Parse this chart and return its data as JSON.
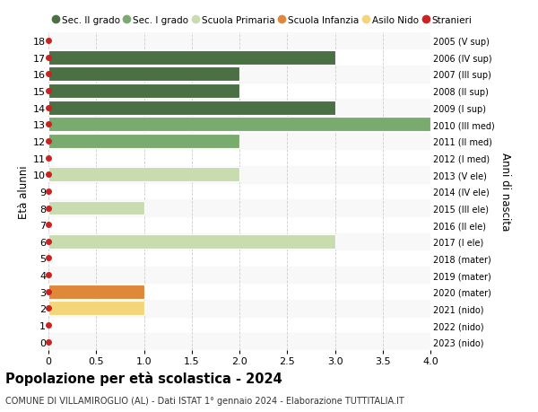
{
  "title": "Popolazione per età scolastica - 2024",
  "subtitle": "COMUNE DI VILLAMIROGLIO (AL) - Dati ISTAT 1° gennaio 2024 - Elaborazione TUTTITALIA.IT",
  "ylabel_left": "Età alunni",
  "ylabel_right": "Anni di nascita",
  "xlim": [
    0,
    4
  ],
  "xticks": [
    0,
    0.5,
    1.0,
    1.5,
    2.0,
    2.5,
    3.0,
    3.5,
    4.0
  ],
  "xtick_labels": [
    "0",
    "0.5",
    "1.0",
    "1.5",
    "2.0",
    "2.5",
    "3.0",
    "3.5",
    "4.0"
  ],
  "ages": [
    0,
    1,
    2,
    3,
    4,
    5,
    6,
    7,
    8,
    9,
    10,
    11,
    12,
    13,
    14,
    15,
    16,
    17,
    18
  ],
  "right_labels": [
    "2023 (nido)",
    "2022 (nido)",
    "2021 (nido)",
    "2020 (mater)",
    "2019 (mater)",
    "2018 (mater)",
    "2017 (I ele)",
    "2016 (II ele)",
    "2015 (III ele)",
    "2014 (IV ele)",
    "2013 (V ele)",
    "2012 (I med)",
    "2011 (II med)",
    "2010 (III med)",
    "2009 (I sup)",
    "2008 (II sup)",
    "2007 (III sup)",
    "2006 (IV sup)",
    "2005 (V sup)"
  ],
  "bars": [
    {
      "age": 17,
      "value": 3,
      "color": "#4a7043"
    },
    {
      "age": 16,
      "value": 2,
      "color": "#4a7043"
    },
    {
      "age": 15,
      "value": 2,
      "color": "#4a7043"
    },
    {
      "age": 14,
      "value": 3,
      "color": "#4a7043"
    },
    {
      "age": 13,
      "value": 4,
      "color": "#7aab6e"
    },
    {
      "age": 12,
      "value": 2,
      "color": "#7aab6e"
    },
    {
      "age": 10,
      "value": 2,
      "color": "#c8dcb0"
    },
    {
      "age": 8,
      "value": 1,
      "color": "#c8dcb0"
    },
    {
      "age": 6,
      "value": 3,
      "color": "#c8dcb0"
    },
    {
      "age": 3,
      "value": 1,
      "color": "#e0883a"
    },
    {
      "age": 2,
      "value": 1,
      "color": "#f5d57a"
    }
  ],
  "alt_row_color": "#f0f0f0",
  "stranieri_color": "#cc2222",
  "legend_items": [
    {
      "label": "Sec. II grado",
      "color": "#4a7043",
      "type": "patch"
    },
    {
      "label": "Sec. I grado",
      "color": "#7aab6e",
      "type": "patch"
    },
    {
      "label": "Scuola Primaria",
      "color": "#c8dcb0",
      "type": "patch"
    },
    {
      "label": "Scuola Infanzia",
      "color": "#e0883a",
      "type": "patch"
    },
    {
      "label": "Asilo Nido",
      "color": "#f5d57a",
      "type": "patch"
    },
    {
      "label": "Stranieri",
      "color": "#cc2222",
      "type": "circle"
    }
  ],
  "background_color": "#ffffff",
  "grid_color": "#cccccc",
  "bar_height": 0.85
}
